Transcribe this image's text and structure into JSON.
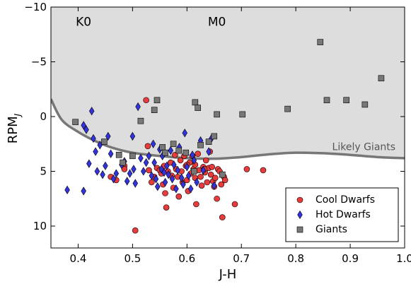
{
  "chart_data": {
    "type": "scatter",
    "xlabel": "J-H",
    "ylabel_main": "RPM",
    "ylabel_sub": "J",
    "xlim": [
      0.35,
      1.0
    ],
    "ylim": [
      12,
      -10
    ],
    "y_inverted": true,
    "x_ticks": [
      0.4,
      0.5,
      0.6,
      0.7,
      0.8,
      0.9,
      1.0
    ],
    "x_tick_labels": [
      "0.4",
      "0.5",
      "0.6",
      "0.7",
      "0.8",
      "0.9",
      "1.0"
    ],
    "y_ticks": [
      -10,
      -5,
      0,
      5,
      10
    ],
    "y_tick_labels": [
      "−10",
      "−5",
      "0",
      "5",
      "10"
    ],
    "grid": false,
    "legend_position": "lower-right",
    "annotations": [
      {
        "text": "K0",
        "x": 0.41,
        "y": -8.6
      },
      {
        "text": "M0",
        "x": 0.655,
        "y": -8.6
      },
      {
        "text": "Likely Giants",
        "x": 0.925,
        "y": 2.8
      }
    ],
    "boundary_curve": {
      "label": "Likely Giants",
      "fill_color": "#dddddd",
      "line_color": "#777777",
      "x": [
        0.35,
        0.37,
        0.4,
        0.43,
        0.46,
        0.5,
        0.55,
        0.6,
        0.65,
        0.7,
        0.75,
        0.8,
        0.85,
        0.9,
        0.95,
        1.0
      ],
      "y": [
        -1.6,
        0.3,
        1.4,
        2.2,
        2.8,
        3.3,
        3.6,
        3.8,
        3.85,
        3.7,
        3.45,
        3.3,
        3.35,
        3.5,
        3.7,
        3.8
      ]
    },
    "series": [
      {
        "name": "Cool Dwarfs",
        "marker": "circle",
        "color": "#e83b3b",
        "points": [
          [
            0.485,
            4.5
          ],
          [
            0.485,
            4.8
          ],
          [
            0.525,
            -1.5
          ],
          [
            0.528,
            2.7
          ],
          [
            0.53,
            4.9
          ],
          [
            0.535,
            6.0
          ],
          [
            0.54,
            5.5
          ],
          [
            0.545,
            4.7
          ],
          [
            0.55,
            4.9
          ],
          [
            0.553,
            5.2
          ],
          [
            0.556,
            6.2
          ],
          [
            0.558,
            4.5
          ],
          [
            0.56,
            7.0
          ],
          [
            0.562,
            8.3
          ],
          [
            0.565,
            5.0
          ],
          [
            0.57,
            4.2
          ],
          [
            0.572,
            5.4
          ],
          [
            0.575,
            6.5
          ],
          [
            0.578,
            3.5
          ],
          [
            0.58,
            4.8
          ],
          [
            0.583,
            5.5
          ],
          [
            0.585,
            7.3
          ],
          [
            0.588,
            4.0
          ],
          [
            0.59,
            5.0
          ],
          [
            0.592,
            6.0
          ],
          [
            0.595,
            3.6
          ],
          [
            0.598,
            4.5
          ],
          [
            0.6,
            5.8
          ],
          [
            0.602,
            6.8
          ],
          [
            0.605,
            4.2
          ],
          [
            0.607,
            5.2
          ],
          [
            0.61,
            3.6
          ],
          [
            0.612,
            4.8
          ],
          [
            0.615,
            5.6
          ],
          [
            0.617,
            8.0
          ],
          [
            0.62,
            3.4
          ],
          [
            0.622,
            4.9
          ],
          [
            0.625,
            5.5
          ],
          [
            0.627,
            6.3
          ],
          [
            0.63,
            4.6
          ],
          [
            0.633,
            5.1
          ],
          [
            0.635,
            4.0
          ],
          [
            0.637,
            6.0
          ],
          [
            0.64,
            4.7
          ],
          [
            0.642,
            3.2
          ],
          [
            0.644,
            5.3
          ],
          [
            0.646,
            4.6
          ],
          [
            0.648,
            5.9
          ],
          [
            0.65,
            6.4
          ],
          [
            0.652,
            5.6
          ],
          [
            0.655,
            7.5
          ],
          [
            0.657,
            4.8
          ],
          [
            0.66,
            5.0
          ],
          [
            0.663,
            6.2
          ],
          [
            0.665,
            9.2
          ],
          [
            0.668,
            5.5
          ],
          [
            0.67,
            5.8
          ],
          [
            0.688,
            8.0
          ],
          [
            0.71,
            4.8
          ],
          [
            0.74,
            4.9
          ],
          [
            0.505,
            10.4
          ],
          [
            0.47,
            5.8
          ],
          [
            0.46,
            5.5
          ],
          [
            0.6,
            4.4
          ],
          [
            0.615,
            4.4
          ],
          [
            0.632,
            4.8
          ]
        ]
      },
      {
        "name": "Hot Dwarfs",
        "marker": "diamond",
        "color": "#3333dd",
        "points": [
          [
            0.38,
            6.7
          ],
          [
            0.41,
            0.8
          ],
          [
            0.41,
            6.8
          ],
          [
            0.415,
            1.2
          ],
          [
            0.42,
            4.3
          ],
          [
            0.425,
            -0.5
          ],
          [
            0.428,
            2.0
          ],
          [
            0.432,
            3.2
          ],
          [
            0.435,
            5.0
          ],
          [
            0.44,
            2.6
          ],
          [
            0.445,
            5.3
          ],
          [
            0.45,
            4.5
          ],
          [
            0.455,
            1.8
          ],
          [
            0.46,
            3.4
          ],
          [
            0.465,
            5.7
          ],
          [
            0.47,
            5.2
          ],
          [
            0.48,
            4.4
          ],
          [
            0.485,
            4.1
          ],
          [
            0.49,
            5.9
          ],
          [
            0.495,
            5.2
          ],
          [
            0.5,
            1.8
          ],
          [
            0.502,
            4.8
          ],
          [
            0.505,
            6.1
          ],
          [
            0.51,
            -0.9
          ],
          [
            0.515,
            3.8
          ],
          [
            0.52,
            5.0
          ],
          [
            0.525,
            4.2
          ],
          [
            0.53,
            3.6
          ],
          [
            0.535,
            5.4
          ],
          [
            0.538,
            2.5
          ],
          [
            0.54,
            4.2
          ],
          [
            0.543,
            5.7
          ],
          [
            0.546,
            6.4
          ],
          [
            0.55,
            3.0
          ],
          [
            0.553,
            4.8
          ],
          [
            0.555,
            3.6
          ],
          [
            0.558,
            5.1
          ],
          [
            0.56,
            6.0
          ],
          [
            0.563,
            4.5
          ],
          [
            0.566,
            5.3
          ],
          [
            0.57,
            3.1
          ],
          [
            0.573,
            5.7
          ],
          [
            0.576,
            4.4
          ],
          [
            0.58,
            6.6
          ],
          [
            0.583,
            4.9
          ],
          [
            0.586,
            2.8
          ],
          [
            0.59,
            5.6
          ],
          [
            0.593,
            6.2
          ],
          [
            0.596,
            1.5
          ],
          [
            0.6,
            4.6
          ],
          [
            0.603,
            5.4
          ],
          [
            0.607,
            6.6
          ],
          [
            0.61,
            3.5
          ],
          [
            0.613,
            4.0
          ],
          [
            0.618,
            6.0
          ],
          [
            0.625,
            2.2
          ],
          [
            0.63,
            4.9
          ],
          [
            0.64,
            3.2
          ],
          [
            0.645,
            2.0
          ],
          [
            0.65,
            6.3
          ]
        ]
      },
      {
        "name": "Giants",
        "marker": "square",
        "color": "#777777",
        "points": [
          [
            0.395,
            0.5
          ],
          [
            0.448,
            2.3
          ],
          [
            0.475,
            3.5
          ],
          [
            0.482,
            4.2
          ],
          [
            0.5,
            3.6
          ],
          [
            0.515,
            0.4
          ],
          [
            0.54,
            -0.6
          ],
          [
            0.545,
            -1.5
          ],
          [
            0.555,
            2.8
          ],
          [
            0.56,
            3.3
          ],
          [
            0.575,
            2.5
          ],
          [
            0.585,
            3.1
          ],
          [
            0.598,
            3.3
          ],
          [
            0.613,
            5.0
          ],
          [
            0.615,
            -1.3
          ],
          [
            0.62,
            -0.8
          ],
          [
            0.625,
            2.6
          ],
          [
            0.64,
            2.3
          ],
          [
            0.65,
            1.8
          ],
          [
            0.655,
            -0.2
          ],
          [
            0.665,
            5.3
          ],
          [
            0.702,
            -0.2
          ],
          [
            0.785,
            -0.7
          ],
          [
            0.845,
            -6.8
          ],
          [
            0.857,
            -1.5
          ],
          [
            0.893,
            -1.5
          ],
          [
            0.927,
            -1.1
          ],
          [
            0.957,
            -3.5
          ]
        ]
      }
    ]
  }
}
